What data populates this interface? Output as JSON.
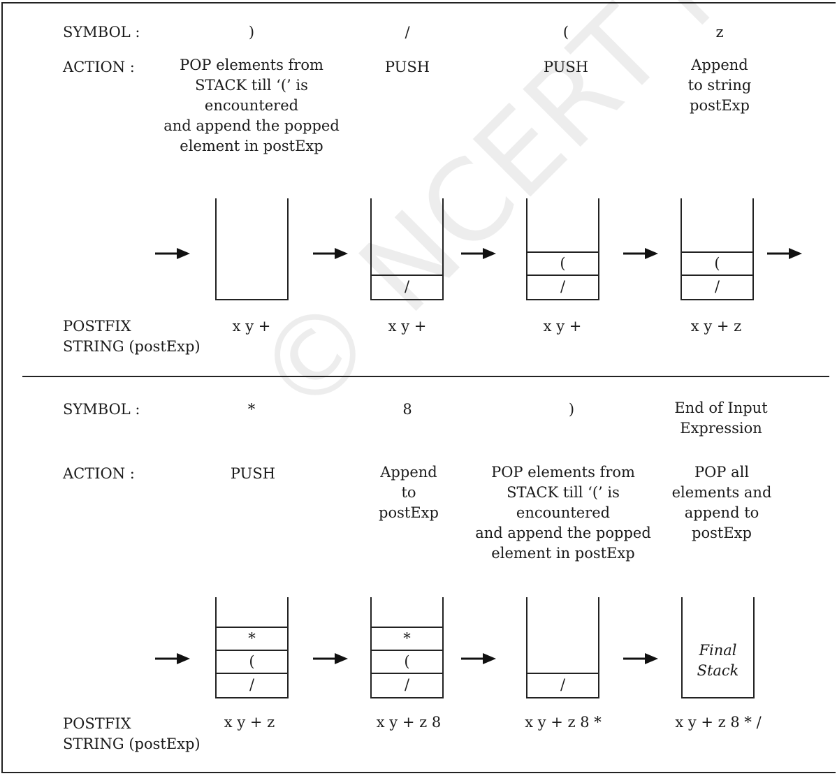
{
  "watermark": "© NCERT not to be republished",
  "top": {
    "symbol_label": "SYMBOL :",
    "action_label": "ACTION  :",
    "postfix_label_1": "POSTFIX",
    "postfix_label_2": "STRING (postExp)",
    "steps": [
      {
        "symbol": ")",
        "action": "POP elements from\nSTACK till ‘(’ is\nencountered\nand append the popped\nelement in postExp",
        "stack": [],
        "postfix": "x y +"
      },
      {
        "symbol": "/",
        "action": "PUSH",
        "stack": [
          "/"
        ],
        "postfix": "x y +"
      },
      {
        "symbol": "(",
        "action": "PUSH",
        "stack": [
          "/",
          "("
        ],
        "postfix": "x y +"
      },
      {
        "symbol": "z",
        "action": "Append\nto string\npostExp",
        "stack": [
          "/",
          "("
        ],
        "postfix": "x y + z"
      }
    ]
  },
  "bottom": {
    "symbol_label": "SYMBOL :",
    "action_label": "ACTION  :",
    "postfix_label_1": "POSTFIX",
    "postfix_label_2": "STRING (postExp)",
    "steps": [
      {
        "symbol": "*",
        "action": "PUSH",
        "stack": [
          "/",
          "(",
          "*"
        ],
        "postfix": "x y + z"
      },
      {
        "symbol": "8",
        "action": "Append\nto\npostExp",
        "stack": [
          "/",
          "(",
          "*"
        ],
        "postfix": "x y + z 8"
      },
      {
        "symbol": ")",
        "action": "POP elements from\nSTACK till ‘(’ is\nencountered\nand append the popped\nelement in postExp",
        "stack": [
          "/"
        ],
        "postfix": "x y + z 8 *"
      },
      {
        "symbol": "End of Input\nExpression",
        "action": "POP all\nelements and\nappend to\npostExp",
        "stack": [],
        "final": "Final\nStack",
        "postfix": "x y + z 8 * /"
      }
    ]
  }
}
